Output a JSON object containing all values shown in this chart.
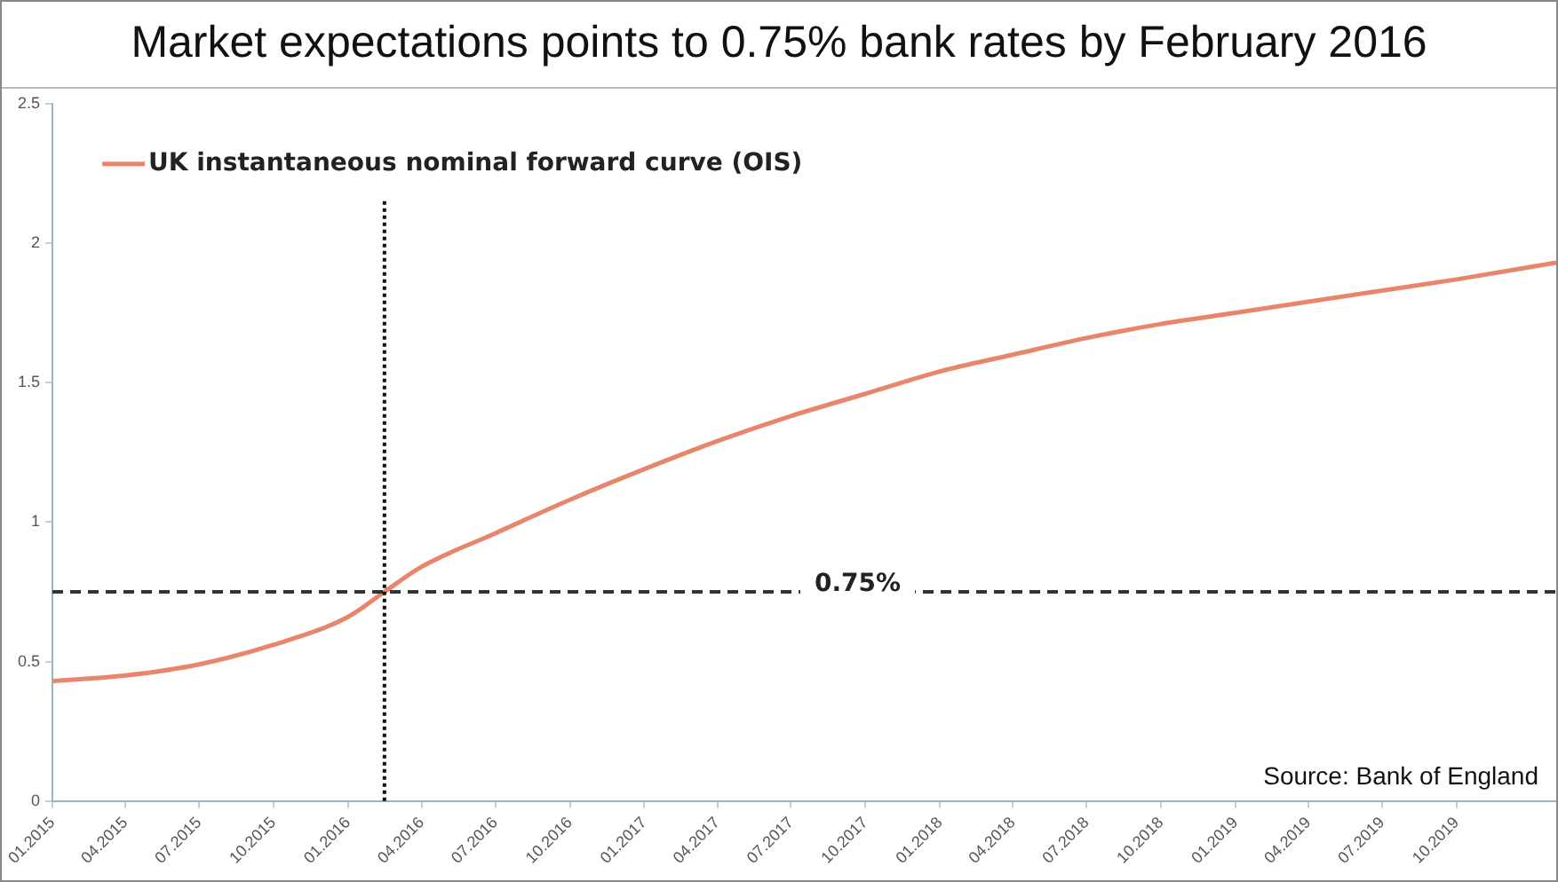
{
  "chart_data": {
    "type": "line",
    "title": "Market expectations points to 0.75% bank rates by February 2016",
    "x": [
      "2015-01",
      "2015-04",
      "2015-07",
      "2015-10",
      "2016-01",
      "2016-02-15",
      "2016-04",
      "2016-07",
      "2016-10",
      "2017-01",
      "2017-04",
      "2017-07",
      "2017-10",
      "2018-01",
      "2018-04",
      "2018-07",
      "2018-10",
      "2019-01",
      "2019-04",
      "2019-07",
      "2019-10",
      "2020-02"
    ],
    "series": [
      {
        "name": "UK instantaneous nominal forward curve (OIS)",
        "color": "#e8866c",
        "values": [
          0.43,
          0.45,
          0.49,
          0.56,
          0.66,
          0.75,
          0.84,
          0.96,
          1.08,
          1.19,
          1.29,
          1.38,
          1.46,
          1.54,
          1.6,
          1.66,
          1.71,
          1.75,
          1.79,
          1.83,
          1.87,
          1.93
        ]
      }
    ],
    "xlim": [
      "2015-01",
      "2020-02"
    ],
    "xticks": [
      {
        "value": "2015-01",
        "label": "01.2015"
      },
      {
        "value": "2015-04",
        "label": "04.2015"
      },
      {
        "value": "2015-07",
        "label": "07.2015"
      },
      {
        "value": "2015-10",
        "label": "10.2015"
      },
      {
        "value": "2016-01",
        "label": "01.2016"
      },
      {
        "value": "2016-04",
        "label": "04.2016"
      },
      {
        "value": "2016-07",
        "label": "07.2016"
      },
      {
        "value": "2016-10",
        "label": "10.2016"
      },
      {
        "value": "2017-01",
        "label": "01.2017"
      },
      {
        "value": "2017-04",
        "label": "04.2017"
      },
      {
        "value": "2017-07",
        "label": "07.2017"
      },
      {
        "value": "2017-10",
        "label": "10.2017"
      },
      {
        "value": "2018-01",
        "label": "01.2018"
      },
      {
        "value": "2018-04",
        "label": "04.2018"
      },
      {
        "value": "2018-07",
        "label": "07.2018"
      },
      {
        "value": "2018-10",
        "label": "10.2018"
      },
      {
        "value": "2019-01",
        "label": "01.2019"
      },
      {
        "value": "2019-04",
        "label": "04.2019"
      },
      {
        "value": "2019-07",
        "label": "07.2019"
      },
      {
        "value": "2019-10",
        "label": "10.2019"
      }
    ],
    "ylim": [
      0,
      2.5
    ],
    "yticks": [
      0,
      0.5,
      1,
      1.5,
      2,
      2.5
    ],
    "ref_lines": [
      {
        "axis": "y",
        "value": 0.75,
        "label": "0.75%",
        "color": "#333333",
        "line_style": "dashed"
      },
      {
        "axis": "x",
        "value": "2016-02-15",
        "label": null,
        "color": "#111111",
        "line_style": "dotted"
      }
    ],
    "annotations": [
      "Source: Bank of England"
    ],
    "grid": false,
    "legend": "top left",
    "marker": "none",
    "line_style": "solid"
  }
}
